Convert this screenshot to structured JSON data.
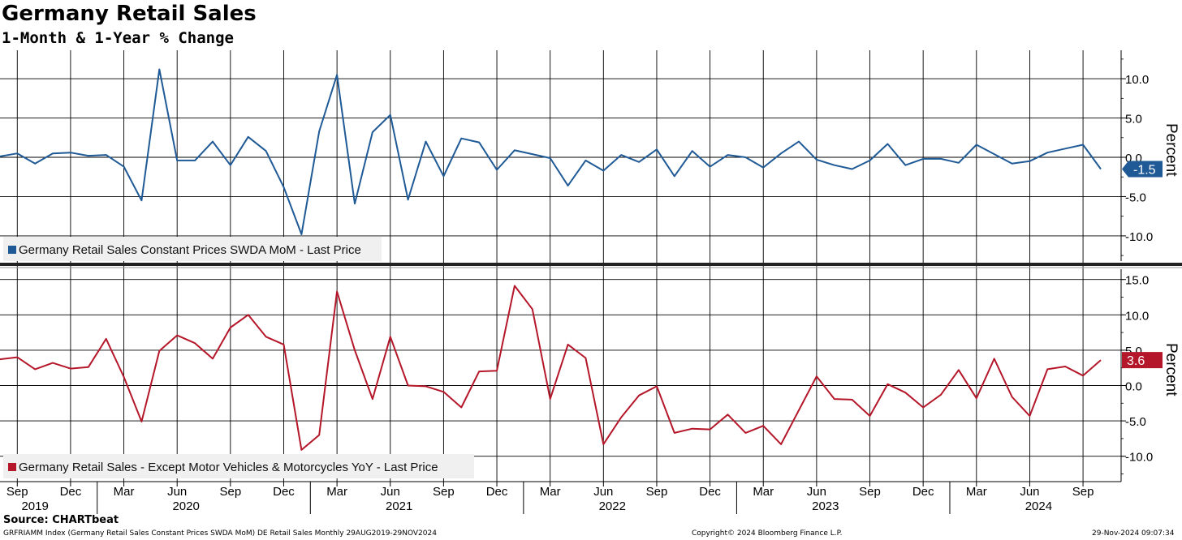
{
  "header": {
    "title": "Germany Retail Sales",
    "subtitle": "1-Month & 1-Year % Change"
  },
  "footer": {
    "source": "Source: CHARTbeat",
    "left": "GRFRIAMM Index (Germany Retail Sales Constant Prices SWDA MoM) DE Retail Sales  Monthly 29AUG2019-29NOV2024",
    "center": "Copyright© 2024 Bloomberg Finance L.P.",
    "right": "29-Nov-2024 09:07:34"
  },
  "colors": {
    "mom": "#1f5a96",
    "yoy": "#b5172a"
  },
  "x_axis": {
    "month_ticks": [
      "Sep",
      "Dec",
      "Mar",
      "Jun",
      "Sep",
      "Dec",
      "Mar",
      "Jun",
      "Sep",
      "Dec",
      "Mar",
      "Jun",
      "Sep",
      "Dec",
      "Mar",
      "Jun",
      "Sep",
      "Dec",
      "Mar",
      "Jun",
      "Sep"
    ],
    "years": [
      "2019",
      "2020",
      "2021",
      "2022",
      "2023",
      "2024"
    ]
  },
  "chart_data": [
    {
      "type": "line",
      "ylabel": "Percent",
      "ylim": [
        -13,
        13
      ],
      "yticks": [
        "10.0",
        "5.0",
        "0.0",
        "-5.0",
        "-10.0"
      ],
      "legend": "Germany Retail Sales Constant Prices SWDA MoM - Last Price",
      "last_value": "-1.5",
      "x_start": "2019-08",
      "x_end": "2024-10",
      "series": [
        {
          "name": "Germany Retail Sales Constant Prices SWDA MoM - Last Price",
          "values": [
            0.1,
            0.5,
            -0.8,
            0.5,
            0.6,
            0.2,
            0.3,
            -1.2,
            -5.5,
            11.2,
            -0.4,
            -0.4,
            2.0,
            -1.0,
            2.6,
            0.8,
            -3.8,
            -9.8,
            3.3,
            10.5,
            -5.9,
            3.2,
            5.4,
            -5.4,
            2.0,
            -2.4,
            2.4,
            1.9,
            -1.6,
            0.9,
            0.4,
            -0.1,
            -3.6,
            -0.4,
            -1.7,
            0.3,
            -0.6,
            1.0,
            -2.4,
            0.8,
            -1.2,
            0.3,
            0.0,
            -1.3,
            0.5,
            2.0,
            -0.3,
            -1.0,
            -1.5,
            -0.4,
            1.7,
            -1.0,
            -0.2,
            -0.2,
            -0.7,
            1.6,
            0.4,
            -0.8,
            -0.5,
            0.6,
            1.1,
            1.6,
            -1.5
          ]
        }
      ]
    },
    {
      "type": "line",
      "ylabel": "Percent",
      "ylim": [
        -14,
        17
      ],
      "yticks": [
        "15.0",
        "10.0",
        "5.0",
        "0.0",
        "-5.0",
        "-10.0"
      ],
      "legend": "Germany Retail Sales - Except Motor Vehicles & Motorcycles YoY - Last Price",
      "last_value": "3.6",
      "x_start": "2019-08",
      "x_end": "2024-10",
      "series": [
        {
          "name": "Germany Retail Sales - Except Motor Vehicles & Motorcycles YoY - Last Price",
          "values": [
            3.7,
            4.0,
            2.3,
            3.2,
            2.4,
            2.6,
            6.6,
            1.2,
            -5.1,
            4.9,
            7.1,
            6.0,
            3.8,
            8.2,
            10.0,
            6.9,
            5.8,
            -9.1,
            -7.0,
            13.3,
            5.0,
            -1.9,
            6.9,
            0.0,
            -0.1,
            -0.9,
            -3.1,
            2.0,
            2.1,
            14.1,
            10.8,
            -1.9,
            5.8,
            3.9,
            -8.3,
            -4.5,
            -1.4,
            -0.1,
            -6.7,
            -6.1,
            -6.2,
            -4.1,
            -6.7,
            -5.7,
            -8.3,
            -3.5,
            1.3,
            -1.9,
            -2.0,
            -4.3,
            0.2,
            -1.0,
            -3.1,
            -1.3,
            2.2,
            -1.8,
            3.8,
            -1.6,
            -4.3,
            2.3,
            2.7,
            1.4,
            3.6
          ]
        }
      ]
    }
  ]
}
